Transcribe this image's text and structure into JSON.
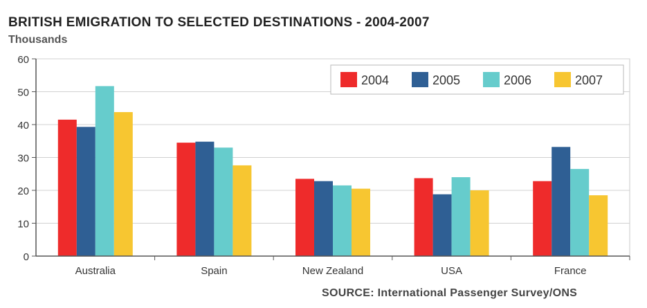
{
  "chart_data": {
    "type": "bar",
    "title": "BRITISH EMIGRATION TO SELECTED DESTINATIONS - 2004-2007",
    "subtitle": "Thousands",
    "source": "SOURCE: International Passenger Survey/ONS",
    "categories": [
      "Australia",
      "Spain",
      "New Zealand",
      "USA",
      "France"
    ],
    "series": [
      {
        "name": "2004",
        "color": "#ee2b2b",
        "values": [
          41.5,
          34.5,
          23.5,
          23.7,
          22.8
        ]
      },
      {
        "name": "2005",
        "color": "#2f5f94",
        "values": [
          39.3,
          34.8,
          22.8,
          18.8,
          33.2
        ]
      },
      {
        "name": "2006",
        "color": "#66cccc",
        "values": [
          51.7,
          33.0,
          21.5,
          24.0,
          26.5
        ]
      },
      {
        "name": "2007",
        "color": "#f7c631",
        "values": [
          43.8,
          27.6,
          20.5,
          20.0,
          18.5
        ]
      }
    ],
    "ylim": [
      0,
      60
    ],
    "yticks": [
      0,
      10,
      20,
      30,
      40,
      50,
      60
    ],
    "grid": true,
    "legend_position": "top-right"
  }
}
